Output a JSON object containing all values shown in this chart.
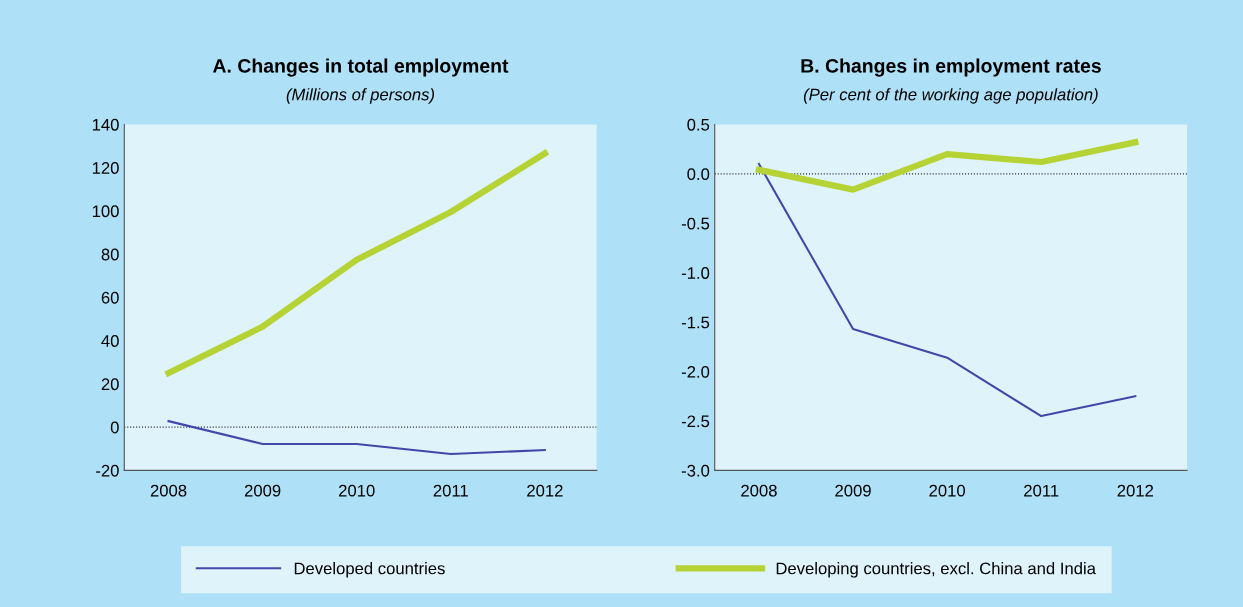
{
  "chart_data": [
    {
      "type": "line",
      "title": "A. Changes in total employment",
      "subtitle": "(Millions of persons)",
      "categories": [
        "2008",
        "2009",
        "2010",
        "2011",
        "2012"
      ],
      "ylim": [
        -20,
        140
      ],
      "yticks": [
        -20,
        0,
        20,
        40,
        60,
        80,
        100,
        120,
        140
      ],
      "grid": false,
      "legend": "bottom",
      "ref_lines": [
        {
          "axis": "y",
          "value": 0,
          "line_style": "dotted",
          "color": "#333333"
        }
      ],
      "series": [
        {
          "name": "Developed countries",
          "color": "#4049a8",
          "values": [
            2.8,
            -7.8,
            -7.8,
            -12.4,
            -10.6
          ]
        },
        {
          "name": "Developing countries, excl. China and India",
          "color": "#b5d335",
          "values": [
            25,
            46.5,
            77.4,
            99.5,
            126.6
          ]
        }
      ]
    },
    {
      "type": "line",
      "title": "B. Changes in employment rates",
      "subtitle": "(Per cent of the working age population)",
      "categories": [
        "2008",
        "2009",
        "2010",
        "2011",
        "2012"
      ],
      "ylim": [
        -3.0,
        0.5
      ],
      "yticks": [
        {
          "value": -3.0,
          "label": "-3.0"
        },
        {
          "value": -2.5,
          "label": "-2.5"
        },
        {
          "value": -2.0,
          "label": "-2.0"
        },
        {
          "value": -1.5,
          "label": "-1.5"
        },
        {
          "value": -1.0,
          "label": "-1.0"
        },
        {
          "value": -0.5,
          "label": "-0.5"
        },
        {
          "value": 0.0,
          "label": "0.0"
        },
        {
          "value": 0.5,
          "label": "0.5"
        }
      ],
      "grid": false,
      "ref_lines": [
        {
          "axis": "y",
          "value": 0,
          "line_style": "dotted",
          "color": "#333333"
        }
      ],
      "series": [
        {
          "name": "Developed countries",
          "color": "#4049a8",
          "values": [
            0.1,
            -1.57,
            -1.86,
            -2.45,
            -2.25
          ]
        },
        {
          "name": "Developing countries, excl. China and India",
          "color": "#b5d335",
          "values": [
            0.04,
            -0.16,
            0.2,
            0.12,
            0.32
          ]
        }
      ]
    }
  ]
}
